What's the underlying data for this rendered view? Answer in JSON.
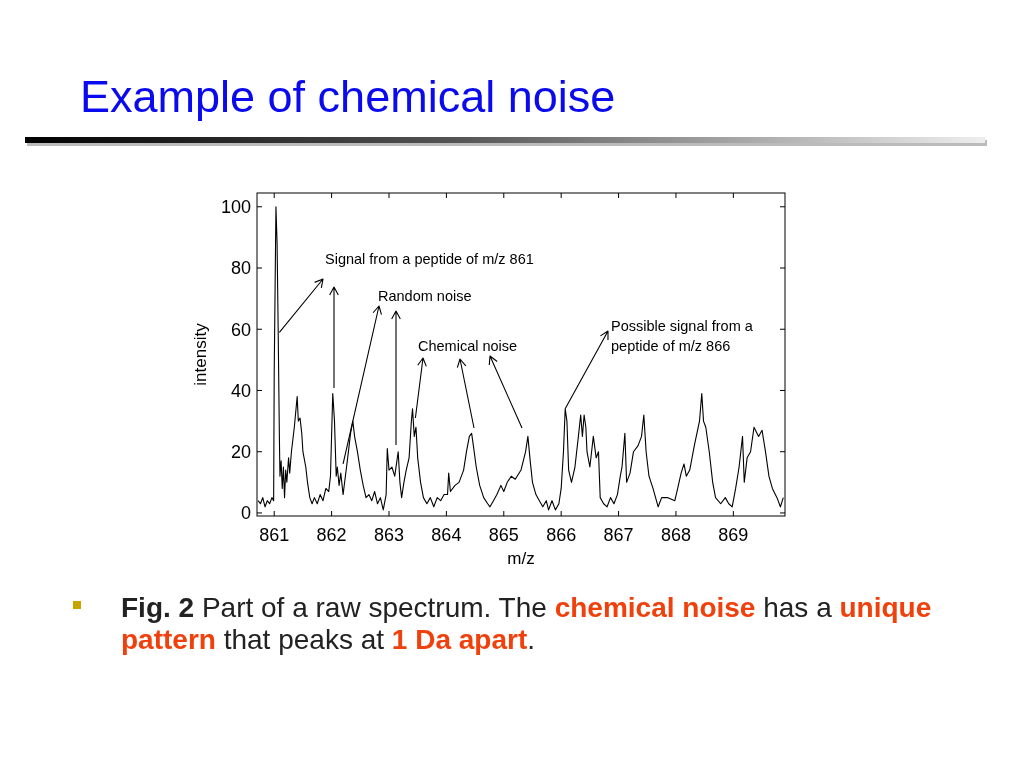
{
  "chart_data": {
    "type": "line",
    "title": "Example of chemical noise",
    "xlabel": "m/z",
    "ylabel": "intensity",
    "annotations": [
      {
        "text": "Signal from a peptide of m/z 861",
        "x": 861.09,
        "y": 59
      },
      {
        "text": "Random noise",
        "x": 862.2,
        "y": 16
      },
      {
        "text": "Chemical noise",
        "x": 863.46,
        "y": 31
      },
      {
        "text": "Possible signal from a peptide of m/z 866",
        "x": 866.07,
        "y": 34
      },
      "Fig. 2",
      " Part of a raw spectrum. The ",
      "chemical noise",
      " has a ",
      "unique",
      "pattern",
      " that peaks at ",
      "1 Da apart",
      "."
    ],
    "xlim": [
      860.7,
      869.9
    ],
    "xticks": [
      861,
      862,
      863,
      864,
      865,
      866,
      867,
      868,
      869
    ],
    "ylim": [
      -1,
      104.5
    ],
    "yticks": [
      0,
      20,
      40,
      60,
      80,
      100
    ],
    "color": "#000000",
    "x": [
      860.72,
      860.76,
      860.8,
      860.84,
      860.88,
      860.92,
      860.96,
      860.99,
      861.0,
      861.03,
      861.05,
      861.07,
      861.09,
      861.1,
      861.12,
      861.14,
      861.16,
      861.18,
      861.2,
      861.22,
      861.25,
      861.27,
      861.3,
      861.35,
      861.4,
      861.42,
      861.45,
      861.48,
      861.5,
      861.55,
      861.58,
      861.62,
      861.66,
      861.7,
      861.75,
      861.8,
      861.85,
      861.9,
      861.95,
      861.98,
      862.02,
      862.05,
      862.08,
      862.1,
      862.13,
      862.16,
      862.2,
      862.24,
      862.28,
      862.33,
      862.37,
      862.4,
      862.45,
      862.5,
      862.55,
      862.6,
      862.65,
      862.7,
      862.75,
      862.8,
      862.85,
      862.9,
      862.95,
      862.97,
      863.0,
      863.05,
      863.1,
      863.16,
      863.19,
      863.22,
      863.26,
      863.3,
      863.35,
      863.39,
      863.41,
      863.44,
      863.47,
      863.5,
      863.55,
      863.6,
      863.66,
      863.72,
      863.78,
      863.84,
      863.9,
      863.96,
      864.02,
      864.04,
      864.07,
      864.15,
      864.22,
      864.3,
      864.35,
      864.4,
      864.44,
      864.47,
      864.52,
      864.58,
      864.65,
      864.72,
      864.76,
      864.82,
      864.88,
      864.95,
      865.0,
      865.06,
      865.13,
      865.2,
      865.3,
      865.38,
      865.42,
      865.46,
      865.5,
      865.56,
      865.62,
      865.68,
      865.74,
      865.78,
      865.84,
      865.9,
      865.96,
      866.0,
      866.04,
      866.07,
      866.1,
      866.13,
      866.18,
      866.24,
      866.3,
      866.34,
      866.37,
      866.4,
      866.43,
      866.45,
      866.5,
      866.56,
      866.61,
      866.65,
      866.68,
      866.74,
      866.8,
      866.86,
      866.92,
      866.98,
      867.03,
      867.06,
      867.11,
      867.14,
      867.2,
      867.26,
      867.34,
      867.4,
      867.44,
      867.48,
      867.53,
      867.6,
      867.69,
      867.75,
      867.86,
      867.98,
      868.03,
      868.09,
      868.14,
      868.18,
      868.24,
      868.32,
      868.41,
      868.45,
      868.48,
      868.52,
      868.58,
      868.64,
      868.69,
      868.78,
      868.86,
      868.92,
      868.98,
      869.04,
      869.1,
      869.16,
      869.19,
      869.24,
      869.3,
      869.36,
      869.44,
      869.5,
      869.56,
      869.62,
      869.68,
      869.76,
      869.82,
      869.87
    ],
    "values": [
      4,
      3,
      5,
      2,
      4,
      3,
      5,
      4,
      46,
      100,
      88,
      58,
      25,
      12,
      17,
      8,
      15,
      5,
      14,
      10,
      18,
      13,
      20,
      28,
      38,
      30,
      31,
      26,
      20,
      15,
      10,
      5,
      3,
      5,
      3,
      6,
      4,
      8,
      7,
      12,
      39,
      30,
      12,
      15,
      9,
      13,
      6,
      12,
      18,
      26,
      30,
      25,
      20,
      14,
      9,
      5,
      6,
      4,
      7,
      3,
      5,
      1,
      6,
      21,
      14,
      15,
      12,
      20,
      10,
      5,
      10,
      14,
      18,
      30,
      34,
      25,
      28,
      18,
      10,
      5,
      3,
      5,
      2,
      5,
      4,
      6,
      6,
      13,
      7,
      9,
      10,
      14,
      20,
      25,
      26,
      22,
      15,
      9,
      5,
      3,
      2,
      4,
      6,
      9,
      7,
      10,
      12,
      11,
      14,
      20,
      25,
      17,
      10,
      6,
      4,
      2,
      4,
      1,
      4,
      1,
      3,
      8,
      20,
      34,
      30,
      14,
      10,
      15,
      25,
      32,
      25,
      32,
      28,
      20,
      15,
      25,
      18,
      20,
      5,
      3,
      2,
      5,
      3,
      6,
      12,
      15,
      26,
      10,
      13,
      20,
      22,
      25,
      32,
      20,
      12,
      8,
      2,
      5,
      5,
      4,
      8,
      13,
      16,
      12,
      14,
      22,
      30,
      39,
      30,
      28,
      20,
      10,
      5,
      3,
      5,
      3,
      2,
      8,
      15,
      25,
      10,
      18,
      20,
      28,
      25,
      27,
      20,
      12,
      8,
      5,
      2,
      5
    ]
  }
}
